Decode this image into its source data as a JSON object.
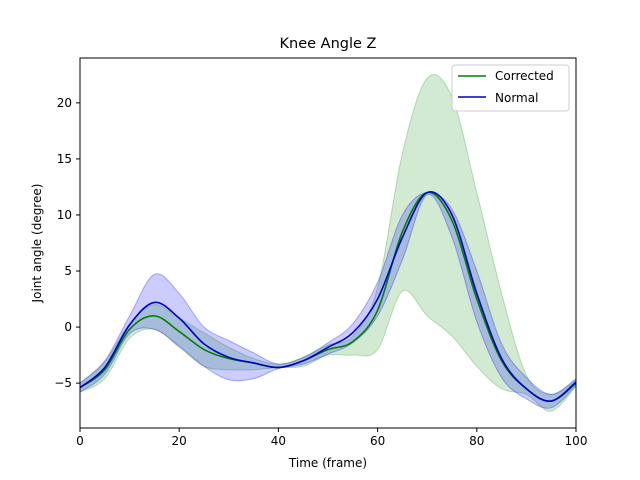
{
  "chart_data": {
    "type": "line",
    "title": "Knee Angle Z",
    "xlabel": "Time (frame)",
    "ylabel": "Joint angle (degree)",
    "xlim": [
      0,
      100
    ],
    "ylim": [
      -9,
      24
    ],
    "xticks": [
      0,
      20,
      40,
      60,
      80,
      100
    ],
    "yticks": [
      -5,
      0,
      5,
      10,
      15,
      20
    ],
    "grid": false,
    "legend_position": "top-right",
    "x": [
      0,
      5,
      10,
      15,
      20,
      25,
      30,
      35,
      40,
      45,
      50,
      55,
      60,
      65,
      70,
      75,
      80,
      85,
      90,
      95,
      100
    ],
    "series": [
      {
        "name": "Corrected",
        "color": "#008000",
        "band_color": "#2ca02c",
        "mean": [
          -5.4,
          -3.8,
          -0.2,
          1.0,
          -0.4,
          -2.0,
          -2.8,
          -3.2,
          -3.6,
          -3.0,
          -2.0,
          -1.3,
          1.5,
          8.5,
          12.0,
          9.5,
          2.5,
          -3.0,
          -5.5,
          -6.6,
          -5.0
        ],
        "upper": [
          -5.0,
          -3.1,
          0.3,
          2.0,
          0.8,
          -0.5,
          -1.8,
          -2.8,
          -3.3,
          -2.7,
          -1.6,
          -0.8,
          3.5,
          15.5,
          22.2,
          20.5,
          12.0,
          3.0,
          -4.3,
          -6.0,
          -4.7
        ],
        "lower": [
          -5.8,
          -4.6,
          -1.0,
          -0.2,
          -1.8,
          -3.5,
          -3.8,
          -3.8,
          -3.6,
          -3.5,
          -2.5,
          -2.5,
          -2.0,
          3.2,
          1.0,
          -0.8,
          -3.5,
          -5.5,
          -6.0,
          -7.5,
          -5.3
        ]
      },
      {
        "name": "Normal",
        "color": "#0000cc",
        "band_color": "#0000ff",
        "mean": [
          -5.4,
          -3.6,
          0.2,
          2.2,
          0.8,
          -1.5,
          -2.7,
          -3.2,
          -3.6,
          -3.0,
          -1.8,
          -0.5,
          2.5,
          8.0,
          12.0,
          10.0,
          3.0,
          -2.8,
          -5.5,
          -6.6,
          -4.9
        ],
        "upper": [
          -5.0,
          -3.0,
          1.0,
          4.7,
          3.0,
          0.0,
          -1.2,
          -2.3,
          -3.3,
          -2.7,
          -1.4,
          0.3,
          4.0,
          10.0,
          12.0,
          10.5,
          5.0,
          -1.5,
          -4.5,
          -6.0,
          -4.6
        ],
        "lower": [
          -5.8,
          -4.2,
          -0.6,
          -0.2,
          -1.7,
          -3.5,
          -4.7,
          -4.6,
          -3.7,
          -3.3,
          -2.4,
          -1.4,
          1.0,
          6.0,
          11.8,
          8.0,
          0.5,
          -4.5,
          -6.4,
          -7.2,
          -5.2
        ]
      }
    ]
  }
}
